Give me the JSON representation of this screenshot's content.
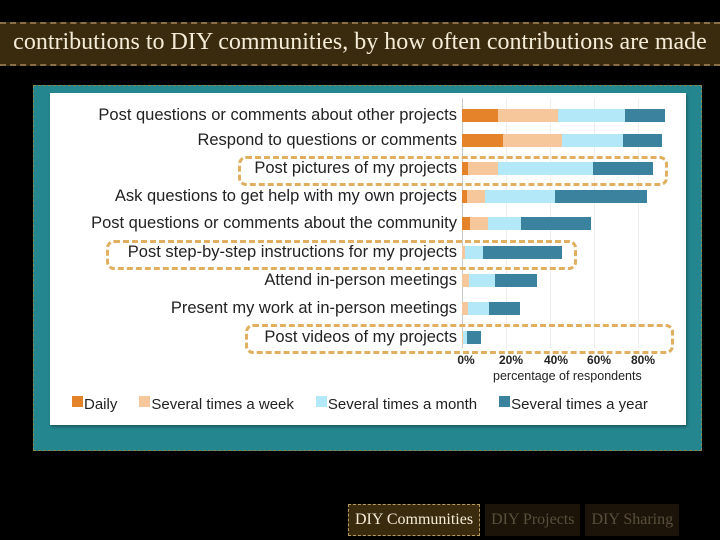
{
  "header": {
    "title": "contributions to DIY communities, by how often contributions are made"
  },
  "tabs": [
    {
      "label": "DIY Communities",
      "active": true
    },
    {
      "label": "DIY Projects",
      "active": false
    },
    {
      "label": "DIY Sharing",
      "active": false
    }
  ],
  "legend": {
    "daily": "Daily",
    "weekly": "Several times a week",
    "monthly": "Several times a month",
    "yearly": "Several times a year"
  },
  "colors": {
    "daily": "#e5832a",
    "weekly": "#f5c79a",
    "monthly": "#b3e8f8",
    "yearly": "#3a829e",
    "highlight": "#e0b060",
    "panel": "#248790"
  },
  "axis": {
    "ticks": [
      "0%",
      "20%",
      "40%",
      "60%",
      "80%"
    ],
    "xlabel": "percentage of respondents"
  },
  "chart_data": {
    "type": "bar",
    "orientation": "horizontal",
    "stacked": true,
    "title": "contributions to DIY communities, by how often contributions are made",
    "xlabel": "percentage of respondents",
    "ylabel": "",
    "xlim": [
      0,
      85
    ],
    "legend_position": "bottom",
    "grid": true,
    "categories": [
      "Post questions or comments about other projects",
      "Respond to questions or comments",
      "Post pictures of my projects",
      "Ask questions to get help with my own projects",
      "Post questions or comments about the community",
      "Post step-by-step instructions for my projects",
      "Attend in-person meetings",
      "Present my work at in-person meetings",
      "Post videos of my projects"
    ],
    "series": [
      {
        "name": "Daily",
        "values": [
          16.4,
          18.6,
          2.7,
          2.3,
          3.6,
          0,
          0,
          0,
          0
        ]
      },
      {
        "name": "Several times a week",
        "values": [
          27.3,
          26.8,
          13.6,
          8.2,
          8.2,
          1.4,
          3.2,
          2.7,
          0.5
        ]
      },
      {
        "name": "Several times a month",
        "values": [
          30.5,
          27.7,
          43.2,
          31.8,
          15.0,
          8.2,
          11.8,
          9.5,
          1.8
        ]
      },
      {
        "name": "Several times a year",
        "values": [
          18.2,
          17.7,
          27.3,
          41.8,
          31.8,
          35.9,
          19.1,
          14.1,
          6.4
        ]
      }
    ],
    "highlighted": [
      "Post pictures of my projects",
      "Post step-by-step instructions for my projects",
      "Post videos of my projects"
    ],
    "ticks": [
      "0%",
      "20%",
      "40%",
      "60%",
      "80%"
    ]
  }
}
